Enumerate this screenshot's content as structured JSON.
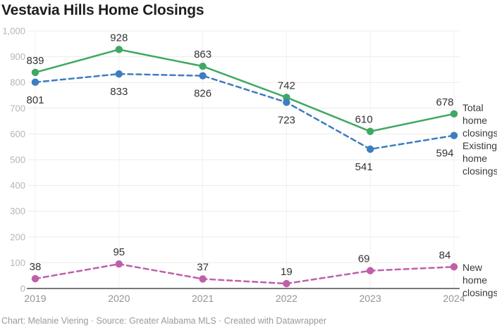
{
  "header": {
    "title": "Vestavia Hills Home Closings"
  },
  "chart_data": {
    "type": "line",
    "title": "Vestavia Hills Home Closings",
    "categories": [
      "2019",
      "2020",
      "2021",
      "2022",
      "2023",
      "2024"
    ],
    "series": [
      {
        "name": "Total home closings",
        "values": [
          839,
          928,
          863,
          742,
          610,
          678
        ],
        "color": "#3fa863",
        "line_style": "solid",
        "label_position": "above"
      },
      {
        "name": "Existing home closings",
        "values": [
          801,
          833,
          826,
          723,
          541,
          594
        ],
        "color": "#3d7dc1",
        "line_style": "dashed",
        "label_position": "below"
      },
      {
        "name": "New home closings",
        "values": [
          38,
          95,
          37,
          19,
          69,
          84
        ],
        "color": "#bf5fa9",
        "line_style": "dashed",
        "label_position": "above"
      }
    ],
    "xlabel": "",
    "ylabel": "",
    "ylim": [
      0,
      1000
    ],
    "yticks": [
      0,
      100,
      200,
      300,
      400,
      500,
      600,
      700,
      800,
      900,
      1000
    ],
    "ytick_labels": [
      "0",
      "100",
      "200",
      "300",
      "400",
      "500",
      "600",
      "700",
      "800",
      "900",
      "1,000"
    ],
    "grid": true,
    "legend_position": "right",
    "colors": {
      "grid_line": "#ececec",
      "vertical_grid_line": "#f1f1f1",
      "axis_line": "#4d4d4d",
      "ytick_label": "#b5b5b5",
      "xtick_label": "#8f9499",
      "data_label": "#333333"
    }
  },
  "footer": {
    "text": "Chart: Melanie Viering · Source: Greater Alabama MLS · Created with Datawrapper"
  }
}
